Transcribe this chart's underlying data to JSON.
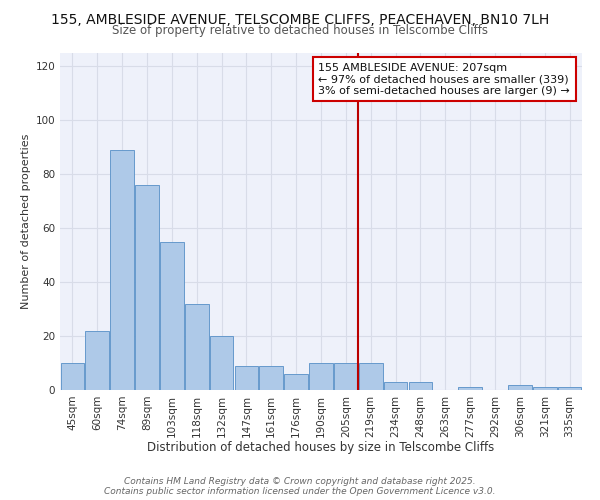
{
  "title1": "155, AMBLESIDE AVENUE, TELSCOMBE CLIFFS, PEACEHAVEN, BN10 7LH",
  "title2": "Size of property relative to detached houses in Telscombe Cliffs",
  "xlabel": "Distribution of detached houses by size in Telscombe Cliffs",
  "ylabel": "Number of detached properties",
  "categories": [
    "45sqm",
    "60sqm",
    "74sqm",
    "89sqm",
    "103sqm",
    "118sqm",
    "132sqm",
    "147sqm",
    "161sqm",
    "176sqm",
    "190sqm",
    "205sqm",
    "219sqm",
    "234sqm",
    "248sqm",
    "263sqm",
    "277sqm",
    "292sqm",
    "306sqm",
    "321sqm",
    "335sqm"
  ],
  "values": [
    10,
    22,
    89,
    76,
    55,
    32,
    20,
    9,
    9,
    6,
    10,
    10,
    10,
    3,
    3,
    0,
    1,
    0,
    2,
    1,
    1
  ],
  "bar_color": "#aec9e8",
  "bar_edge_color": "#6699cc",
  "vline_x": 11.5,
  "vline_color": "#bb0000",
  "annotation_title": "155 AMBLESIDE AVENUE: 207sqm",
  "annotation_line1": "← 97% of detached houses are smaller (339)",
  "annotation_line2": "3% of semi-detached houses are larger (9) →",
  "annotation_box_color": "#cc0000",
  "ylim": [
    0,
    125
  ],
  "yticks": [
    0,
    20,
    40,
    60,
    80,
    100,
    120
  ],
  "background_color": "#eef1fa",
  "grid_color": "#d8dce8",
  "footer1": "Contains HM Land Registry data © Crown copyright and database right 2025.",
  "footer2": "Contains public sector information licensed under the Open Government Licence v3.0.",
  "title1_fontsize": 10,
  "title2_fontsize": 8.5,
  "xlabel_fontsize": 8.5,
  "ylabel_fontsize": 8,
  "tick_fontsize": 7.5,
  "annotation_fontsize": 8,
  "footer_fontsize": 6.5
}
